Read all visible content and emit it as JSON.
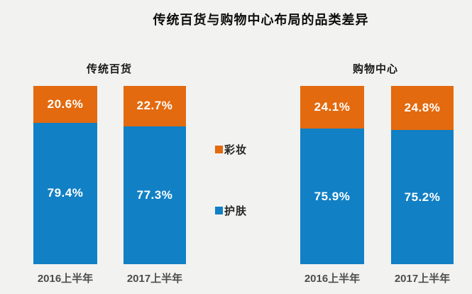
{
  "title": "传统百货与购物中心布局的品类差异",
  "chart_data": {
    "type": "bar",
    "stacked": true,
    "unit": "percent",
    "title": "传统百货与购物中心布局的品类差异",
    "group_labels": [
      "传统百货",
      "购物中心"
    ],
    "categories": [
      "2016上半年",
      "2017上半年",
      "2016上半年",
      "2017上半年"
    ],
    "series": [
      {
        "name": "彩妆",
        "color": "#E36A0E",
        "values": [
          20.6,
          22.7,
          24.1,
          24.8
        ],
        "labels": [
          "20.6%",
          "22.7%",
          "24.1%",
          "24.8%"
        ]
      },
      {
        "name": "护肤",
        "color": "#1180C5",
        "values": [
          79.4,
          77.3,
          75.9,
          75.2
        ],
        "labels": [
          "79.4%",
          "77.3%",
          "75.9%",
          "75.2%"
        ]
      }
    ],
    "ylim": [
      0,
      100
    ],
    "grid": false,
    "axes_visible": false,
    "legend_position": "center-between-groups",
    "background": "#F2F2F0",
    "label_color": "#FFFFFF"
  }
}
